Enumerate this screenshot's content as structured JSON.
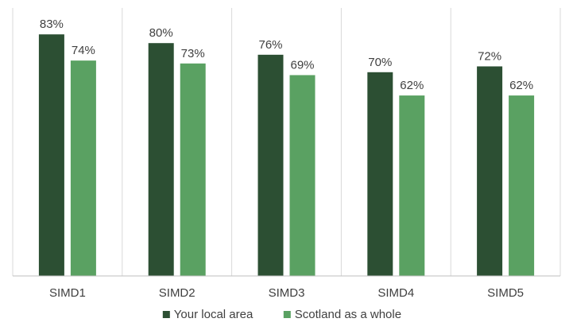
{
  "chart_data": {
    "type": "bar",
    "title": "",
    "xlabel": "",
    "ylabel": "",
    "categories": [
      "SIMD1",
      "SIMD2",
      "SIMD3",
      "SIMD4",
      "SIMD5"
    ],
    "series": [
      {
        "name": "Your local area",
        "values": [
          83,
          80,
          76,
          70,
          72
        ],
        "labels": [
          "83%",
          "80%",
          "76%",
          "70%",
          "72%"
        ],
        "color": "#2c4f33"
      },
      {
        "name": "Scotland as a whole",
        "values": [
          74,
          73,
          69,
          62,
          62
        ],
        "labels": [
          "74%",
          "73%",
          "69%",
          "62%",
          "62%"
        ],
        "color": "#5aa162"
      }
    ],
    "ylim": [
      0,
      90
    ],
    "grid": false,
    "category_separators": true,
    "legend_position": "bottom"
  }
}
